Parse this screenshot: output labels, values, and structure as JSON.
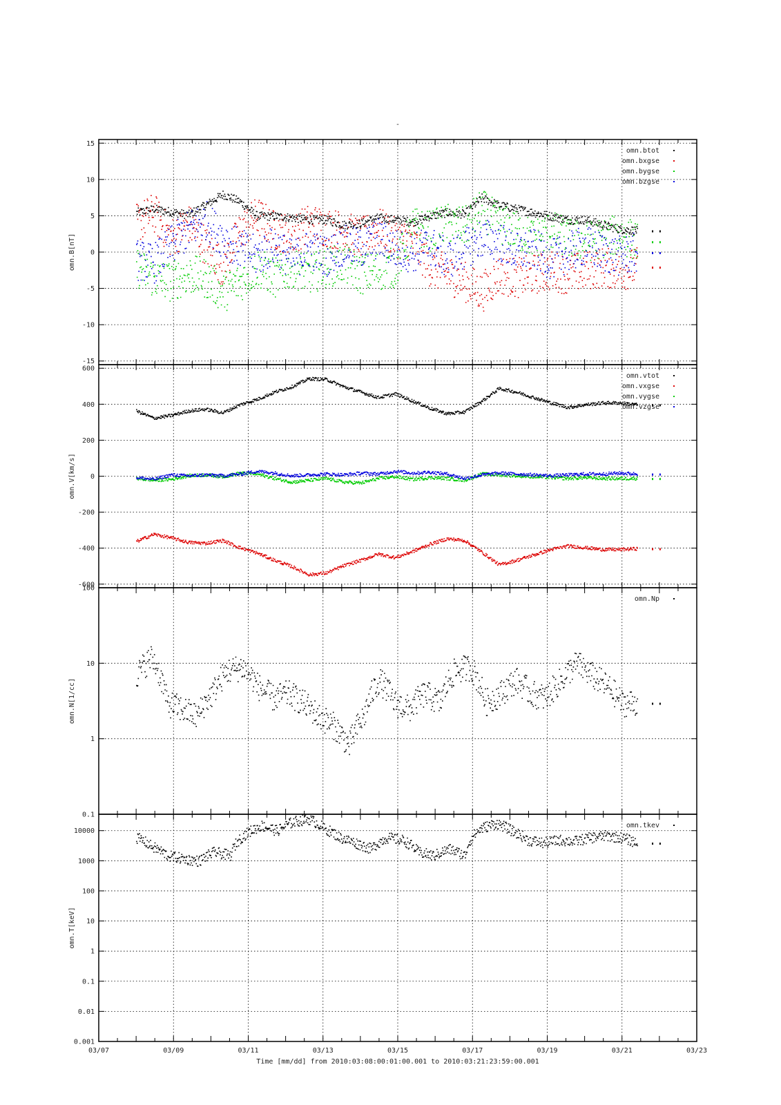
{
  "figure": {
    "title": "-",
    "xlabel": "Time [mm/dd]  from 2010:03:08:00:01:00.001  to  2010:03:21:23:59:00.001"
  },
  "colors": {
    "black": "#000000",
    "red": "#dd0000",
    "green": "#00cc00",
    "blue": "#0000dd",
    "grid": "#000000"
  },
  "chart_data": [
    {
      "type": "scatter",
      "ylabel": "omn.B[nT]",
      "yscale": "linear",
      "ylim": [
        -15.5,
        15.5
      ],
      "yticks": [
        -15,
        -10,
        -5,
        0,
        5,
        10,
        15
      ],
      "ytick_labels": [
        "-15",
        "-10",
        "-5",
        "0",
        "5",
        "10",
        "15"
      ],
      "xlim": [
        0,
        16
      ],
      "xticks": [
        0,
        2,
        4,
        6,
        8,
        10,
        12,
        14,
        16
      ],
      "grid": true,
      "legend_position": "top-right",
      "series": [
        {
          "name": "omn.btot",
          "color": "black",
          "y": [
            5.5,
            6.0,
            5.6,
            5.2,
            6.5,
            8.0,
            7.0,
            5.0,
            5.0,
            4.8,
            4.5,
            4.5,
            3.8,
            4.0,
            4.8,
            4.5,
            4.2,
            5.0,
            5.5,
            5.3,
            7.5,
            6.5,
            6.0,
            5.5,
            5.0,
            4.5,
            4.5,
            3.8,
            3.2,
            3.0
          ]
        },
        {
          "name": "omn.bxgse",
          "color": "red",
          "y": [
            4.0,
            5.5,
            2.0,
            4.0,
            1.0,
            -2.0,
            3.0,
            5.0,
            3.0,
            2.5,
            4.0,
            3.5,
            3.0,
            2.0,
            3.5,
            2.0,
            1.5,
            -2.0,
            -3.0,
            -4.0,
            -5.5,
            -3.0,
            -3.5,
            -3.0,
            -2.5,
            -3.0,
            -2.5,
            -2.0,
            -2.5,
            -2.0
          ]
        },
        {
          "name": "omn.bygse",
          "color": "green",
          "y": [
            -2.0,
            -3.5,
            -4.0,
            -3.0,
            -3.5,
            -5.5,
            -4.0,
            -2.0,
            -3.5,
            -2.0,
            -3.0,
            -2.0,
            -1.5,
            -3.0,
            -2.5,
            -2.0,
            3.5,
            3.0,
            4.0,
            3.5,
            6.0,
            4.0,
            3.0,
            2.0,
            3.0,
            2.0,
            1.5,
            2.0,
            2.5,
            1.5
          ]
        },
        {
          "name": "omn.bzgse",
          "color": "blue",
          "y": [
            -1.0,
            -1.5,
            1.0,
            3.0,
            4.5,
            2.0,
            0.5,
            -0.5,
            1.0,
            -1.0,
            0.5,
            -0.5,
            1.0,
            0.5,
            2.0,
            0.5,
            0.0,
            1.0,
            -1.0,
            0.5,
            2.0,
            1.5,
            0.0,
            0.5,
            -1.0,
            0.0,
            1.0,
            0.0,
            -0.5,
            0.0
          ]
        }
      ]
    },
    {
      "type": "scatter",
      "ylabel": "omn.V[km/s]",
      "yscale": "linear",
      "ylim": [
        -620,
        620
      ],
      "yticks": [
        -600,
        -400,
        -200,
        0,
        200,
        400,
        600
      ],
      "ytick_labels": [
        "-600",
        "-400",
        "-200",
        "0",
        "200",
        "400",
        "600"
      ],
      "xlim": [
        0,
        16
      ],
      "xticks": [
        0,
        2,
        4,
        6,
        8,
        10,
        12,
        14,
        16
      ],
      "grid": true,
      "legend_position": "top-right",
      "series": [
        {
          "name": "omn.vtot",
          "color": "black",
          "y": [
            365,
            325,
            340,
            365,
            375,
            355,
            400,
            430,
            470,
            500,
            545,
            540,
            500,
            470,
            440,
            460,
            420,
            380,
            350,
            360,
            420,
            490,
            470,
            440,
            410,
            385,
            400,
            410,
            410,
            400
          ]
        },
        {
          "name": "omn.vxgse",
          "color": "red",
          "y": [
            -360,
            -320,
            -340,
            -365,
            -370,
            -355,
            -395,
            -425,
            -465,
            -500,
            -545,
            -535,
            -495,
            -465,
            -430,
            -450,
            -415,
            -375,
            -345,
            -355,
            -420,
            -490,
            -465,
            -435,
            -405,
            -385,
            -395,
            -405,
            -405,
            -400
          ]
        },
        {
          "name": "omn.vygse",
          "color": "green",
          "y": [
            -10,
            -20,
            -15,
            5,
            10,
            0,
            20,
            15,
            -10,
            -30,
            -20,
            -10,
            -30,
            -35,
            -10,
            0,
            -15,
            -5,
            -10,
            -20,
            15,
            10,
            5,
            0,
            -5,
            -10,
            -5,
            -10,
            -10,
            -10
          ]
        },
        {
          "name": "omn.vzgse",
          "color": "blue",
          "y": [
            -5,
            -15,
            10,
            5,
            10,
            5,
            15,
            30,
            20,
            5,
            10,
            15,
            10,
            20,
            15,
            30,
            20,
            25,
            15,
            -10,
            10,
            20,
            15,
            10,
            5,
            10,
            15,
            15,
            20,
            15
          ]
        }
      ]
    },
    {
      "type": "scatter",
      "ylabel": "omn.N[1/cc]",
      "yscale": "log",
      "ylim": [
        0.1,
        100
      ],
      "yticks": [
        0.1,
        1,
        10,
        100
      ],
      "ytick_labels": [
        "0.1",
        "1",
        "10",
        "100"
      ],
      "xlim": [
        0,
        16
      ],
      "xticks": [
        0,
        2,
        4,
        6,
        8,
        10,
        12,
        14,
        16
      ],
      "grid": true,
      "legend_position": "top-right",
      "series": [
        {
          "name": "omn.Np",
          "color": "black",
          "y": [
            7.0,
            12.0,
            3.0,
            2.5,
            2.0,
            4.0,
            8.0,
            9.0,
            5.0,
            3.5,
            4.0,
            3.0,
            2.0,
            1.5,
            0.8,
            2.0,
            6.0,
            3.0,
            2.5,
            4.0,
            3.0,
            8.0,
            9.0,
            3.0,
            4.0,
            6.0,
            4.0,
            3.5,
            6.0,
            10.0,
            7.0,
            5.0,
            3.0,
            3.0
          ]
        }
      ]
    },
    {
      "type": "scatter",
      "ylabel": "omn.T[keV]",
      "yscale": "log",
      "ylim": [
        0.001,
        35000
      ],
      "yticks": [
        0.001,
        0.01,
        0.1,
        1,
        10,
        100,
        1000,
        10000
      ],
      "ytick_labels": [
        "0.001",
        "0.01",
        "0.1",
        "1",
        "10",
        "100",
        "1000",
        "10000"
      ],
      "xlim": [
        0,
        16
      ],
      "xticks": [
        0,
        2,
        4,
        6,
        8,
        10,
        12,
        14,
        16
      ],
      "grid": true,
      "legend_position": "top-right",
      "series": [
        {
          "name": "omn.tkev",
          "color": "black",
          "y": [
            6000,
            3000,
            1500,
            1200,
            1000,
            2000,
            1500,
            8000,
            15000,
            10000,
            20000,
            25000,
            12000,
            6000,
            4000,
            2500,
            6000,
            5000,
            2000,
            1500,
            2500,
            1500,
            12000,
            18000,
            10000,
            5000,
            4000,
            5000,
            4500,
            6000,
            7000,
            6000,
            4000
          ]
        }
      ]
    }
  ],
  "x_axis": {
    "tick_labels": [
      "03/07",
      "03/09",
      "03/11",
      "03/13",
      "03/15",
      "03/17",
      "03/19",
      "03/21",
      "03/23"
    ],
    "data_start_day": 1,
    "data_end_day": 14.4
  }
}
